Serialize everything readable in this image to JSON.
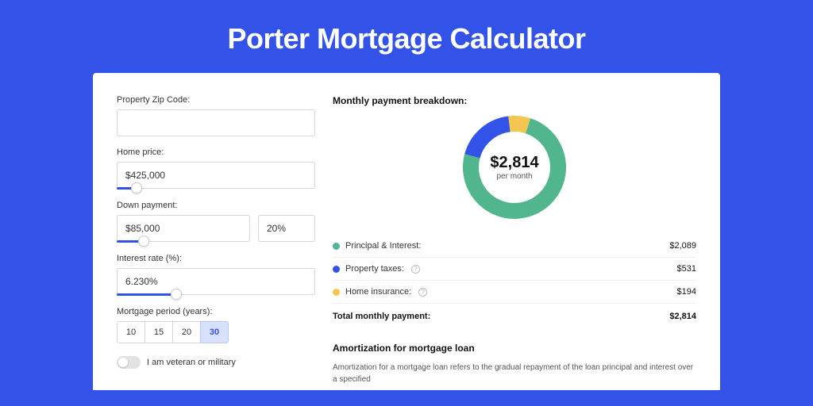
{
  "page": {
    "title": "Porter Mortgage Calculator",
    "background_color": "#3252e8",
    "card_background": "#ffffff"
  },
  "form": {
    "zip": {
      "label": "Property Zip Code:",
      "value": ""
    },
    "home_price": {
      "label": "Home price:",
      "value": "$425,000",
      "slider_pct": 10
    },
    "down_payment": {
      "label": "Down payment:",
      "amount": "$85,000",
      "pct": "20%",
      "slider_pct": 20
    },
    "interest_rate": {
      "label": "Interest rate (%):",
      "value": "6.230%",
      "slider_pct": 30
    },
    "period": {
      "label": "Mortgage period (years):",
      "options": [
        "10",
        "15",
        "20",
        "30"
      ],
      "selected": "30"
    },
    "veteran": {
      "label": "I am veteran or military",
      "checked": false
    }
  },
  "breakdown": {
    "title": "Monthly payment breakdown:",
    "donut": {
      "amount": "$2,814",
      "sub": "per month",
      "size": 130,
      "ring_width": 20,
      "background": "#ffffff",
      "slices": [
        {
          "label": "Principal & Interest",
          "value": 2089,
          "pct": 74.2,
          "color": "#51b58e"
        },
        {
          "label": "Property taxes",
          "value": 531,
          "pct": 18.9,
          "color": "#3252e8"
        },
        {
          "label": "Home insurance",
          "value": 194,
          "pct": 6.9,
          "color": "#f3c64f"
        }
      ],
      "start_angle_deg": -72
    },
    "rows": [
      {
        "label": "Principal & Interest:",
        "value": "$2,089",
        "color": "#51b58e",
        "info": false
      },
      {
        "label": "Property taxes:",
        "value": "$531",
        "color": "#3252e8",
        "info": true
      },
      {
        "label": "Home insurance:",
        "value": "$194",
        "color": "#f3c64f",
        "info": true
      }
    ],
    "total": {
      "label": "Total monthly payment:",
      "value": "$2,814"
    }
  },
  "amortization": {
    "title": "Amortization for mortgage loan",
    "text": "Amortization for a mortgage loan refers to the gradual repayment of the loan principal and interest over a specified"
  }
}
